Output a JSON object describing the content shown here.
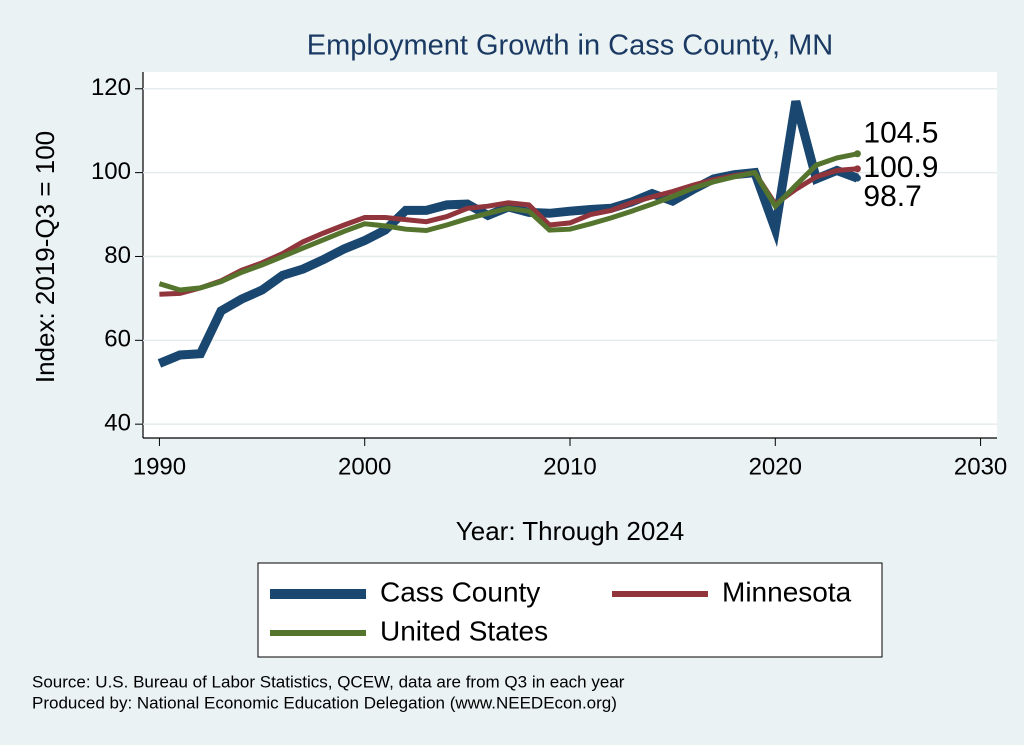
{
  "chart_data": {
    "type": "line",
    "title": "Employment Growth in Cass County, MN",
    "x_label": "Year: Through 2024",
    "y_label": "Index: 2019-Q3 = 100",
    "x": [
      1990,
      1991,
      1992,
      1993,
      1994,
      1995,
      1996,
      1997,
      1998,
      1999,
      2000,
      2001,
      2002,
      2003,
      2004,
      2005,
      2006,
      2007,
      2008,
      2009,
      2010,
      2011,
      2012,
      2013,
      2014,
      2015,
      2016,
      2017,
      2018,
      2019,
      2020,
      2021,
      2022,
      2023,
      2024
    ],
    "series": [
      {
        "name": "Cass  County",
        "color": "#1a476f",
        "values": [
          54.5,
          56.5,
          56.8,
          67,
          69.8,
          72,
          75.5,
          77,
          79.3,
          81.8,
          83.8,
          86.3,
          91,
          91,
          92.3,
          92.5,
          89.8,
          91.8,
          90.5,
          90.3,
          90.8,
          91.2,
          91.5,
          93,
          95,
          93.2,
          96,
          98.5,
          99.5,
          100,
          86.5,
          117,
          98.5,
          100.5,
          98.7
        ]
      },
      {
        "name": "Minnesota",
        "color": "#90353b",
        "values": [
          71,
          71.2,
          72.5,
          74.2,
          76.7,
          78.5,
          80.7,
          83.5,
          85.6,
          87.5,
          89.3,
          89.3,
          88.8,
          88.3,
          89.5,
          91.5,
          92,
          92.8,
          92.3,
          87.5,
          88,
          90,
          91,
          92.8,
          94.2,
          95.5,
          97,
          98.3,
          99.3,
          100,
          92.5,
          96,
          99,
          100.5,
          100.9
        ]
      },
      {
        "name": "United States",
        "color": "#55752f",
        "values": [
          73.5,
          72,
          72.5,
          74,
          76.2,
          78,
          80,
          82,
          84,
          86,
          87.8,
          87.3,
          86.5,
          86.2,
          87.5,
          89,
          90.3,
          91.5,
          90.8,
          86.3,
          86.5,
          87.8,
          89.2,
          90.8,
          92.5,
          94.3,
          96.3,
          97.8,
          99,
          100,
          92,
          97,
          101.8,
          103.5,
          104.5
        ]
      }
    ],
    "xlim": [
      1989.2,
      2030.8
    ],
    "xticks": [
      1990,
      2000,
      2010,
      2020,
      2030
    ],
    "ylim": [
      36.7,
      124
    ],
    "yticks": [
      40,
      60,
      80,
      100,
      120
    ],
    "grid": true,
    "notes": [
      "Source: U.S. Bureau of Labor Statistics, QCEW, data are from Q3 in each year",
      "Produced by: National Economic Education Delegation (www.NEEDEcon.org)"
    ]
  }
}
